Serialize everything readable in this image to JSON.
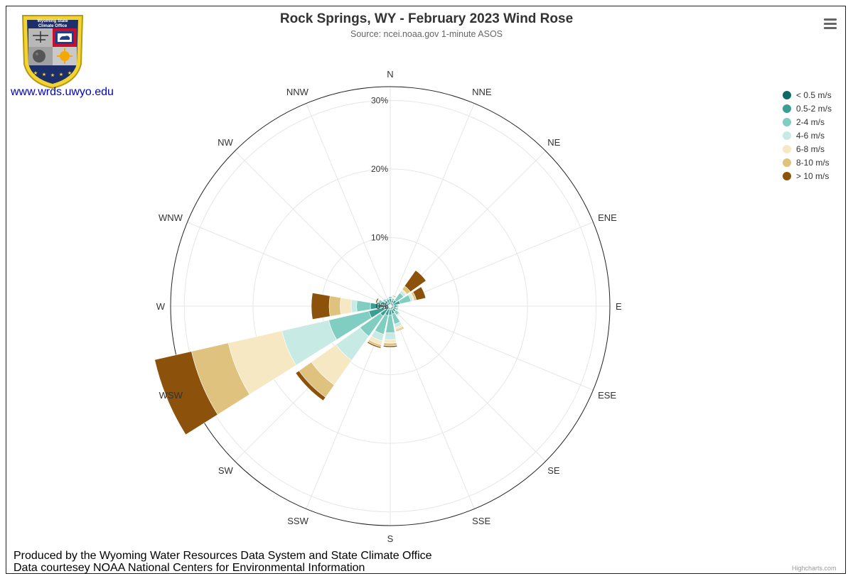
{
  "header": {
    "title": "Rock Springs, WY - February 2023 Wind Rose",
    "subtitle": "Source: ncei.noaa.gov 1-minute ASOS"
  },
  "logo": {
    "text_line1": "Wyoming State",
    "text_line2": "Climate Office",
    "icon": "wyoming-state-climate-office-shield"
  },
  "site_link": "www.wrds.uwyo.edu",
  "menu": {
    "icon": "hamburger-menu-icon"
  },
  "footer": {
    "line1": "Produced by the Wyoming Water Resources Data System and State Climate Office",
    "line2": "Data courtesey NOAA National Centers for Environmental Information",
    "highcharts_credit": "Highcharts.com"
  },
  "chart_data": {
    "type": "windrose",
    "directions": [
      "N",
      "NNE",
      "NE",
      "ENE",
      "E",
      "ESE",
      "SE",
      "SSE",
      "S",
      "SSW",
      "SW",
      "WSW",
      "W",
      "WNW",
      "NW",
      "NNW"
    ],
    "radial_ticks": [
      "0%",
      "10%",
      "20%",
      "30%"
    ],
    "radial_max": 32,
    "legend_position": "top-right",
    "series": [
      {
        "name": "< 0.5 m/s",
        "color": "#0b6b62",
        "values": [
          0.6,
          0.5,
          0.5,
          0.5,
          0.5,
          0.5,
          0.5,
          0.5,
          0.5,
          0.5,
          0.6,
          0.9,
          0.9,
          0.6,
          0.5,
          0.6
        ]
      },
      {
        "name": "0.5-2 m/s",
        "color": "#3a9e93",
        "values": [
          0.5,
          0.4,
          0.6,
          1.0,
          0.5,
          0.4,
          0.5,
          0.7,
          0.8,
          0.9,
          1.2,
          2.3,
          2.0,
          0.7,
          0.5,
          0.4
        ]
      },
      {
        "name": "2-4 m/s",
        "color": "#80cdc1",
        "values": [
          0.3,
          0.3,
          1.3,
          1.6,
          0.2,
          0.3,
          0.6,
          1.5,
          2.6,
          2.8,
          3.6,
          6.0,
          2.0,
          0.5,
          0.3,
          0.2
        ]
      },
      {
        "name": "4-6 m/s",
        "color": "#c7eae5",
        "values": [
          0.1,
          0.1,
          0.4,
          0.3,
          0.0,
          0.1,
          0.2,
          0.5,
          1.0,
          1.0,
          4.3,
          7.0,
          0.8,
          0.2,
          0.0,
          0.0
        ]
      },
      {
        "name": "6-8 m/s",
        "color": "#f6e8c3",
        "values": [
          0.0,
          0.1,
          0.2,
          0.2,
          0.0,
          0.0,
          0.1,
          0.3,
          0.5,
          0.6,
          4.4,
          8.0,
          1.6,
          0.0,
          0.0,
          0.0
        ]
      },
      {
        "name": "8-10 m/s",
        "color": "#dfc27d",
        "values": [
          0.0,
          0.1,
          0.6,
          0.3,
          0.0,
          0.0,
          0.0,
          0.2,
          0.4,
          0.3,
          2.2,
          5.5,
          1.6,
          0.0,
          0.0,
          0.0
        ]
      },
      {
        "name": "> 10 m/s",
        "color": "#8c510a",
        "values": [
          0.0,
          0.1,
          2.8,
          1.4,
          0.0,
          0.0,
          0.0,
          0.1,
          0.2,
          0.2,
          0.6,
          5.5,
          2.6,
          0.2,
          0.0,
          0.0
        ]
      }
    ]
  }
}
